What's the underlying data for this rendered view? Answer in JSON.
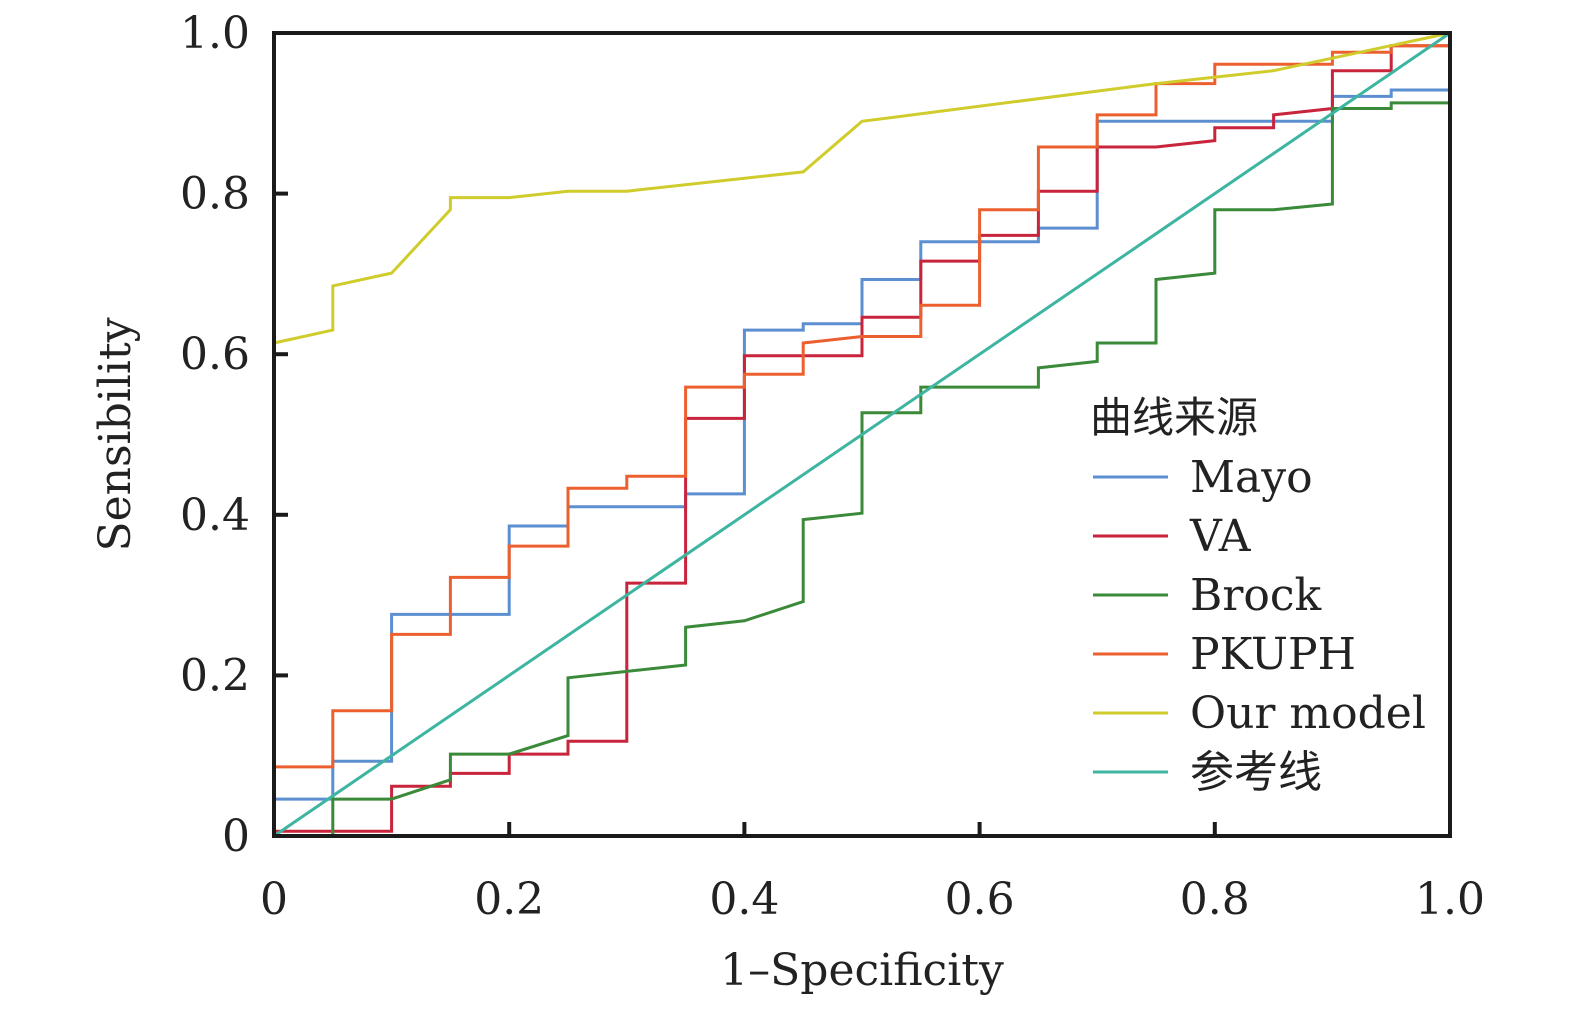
{
  "chart_data": {
    "type": "line",
    "xlabel": "1–Specificity",
    "ylabel": "Sensibility",
    "xlim": [
      0,
      1
    ],
    "ylim": [
      0,
      1
    ],
    "x_ticks": [
      0,
      0.2,
      0.4,
      0.6,
      0.8,
      1.0
    ],
    "x_tick_labels": [
      "0",
      "0.2",
      "0.4",
      "0.6",
      "0.8",
      "1.0"
    ],
    "y_ticks": [
      0,
      0.2,
      0.4,
      0.6,
      0.8,
      1.0
    ],
    "y_tick_labels": [
      "0",
      "0.2",
      "0.4",
      "0.6",
      "0.8",
      "1.0"
    ],
    "grid": false,
    "legend": {
      "title": "曲线来源",
      "position": "right"
    },
    "series": [
      {
        "name": "Mayo",
        "color": "#5b8fd0",
        "points": [
          [
            0,
            0
          ],
          [
            0,
            0.046
          ],
          [
            0.05,
            0.046
          ],
          [
            0.05,
            0.093
          ],
          [
            0.1,
            0.093
          ],
          [
            0.1,
            0.276
          ],
          [
            0.2,
            0.276
          ],
          [
            0.2,
            0.386
          ],
          [
            0.25,
            0.386
          ],
          [
            0.25,
            0.41
          ],
          [
            0.35,
            0.41
          ],
          [
            0.35,
            0.426
          ],
          [
            0.4,
            0.426
          ],
          [
            0.4,
            0.63
          ],
          [
            0.45,
            0.63
          ],
          [
            0.45,
            0.638
          ],
          [
            0.5,
            0.638
          ],
          [
            0.5,
            0.693
          ],
          [
            0.55,
            0.693
          ],
          [
            0.55,
            0.74
          ],
          [
            0.6,
            0.74
          ],
          [
            0.6,
            0.74
          ],
          [
            0.65,
            0.74
          ],
          [
            0.65,
            0.757
          ],
          [
            0.7,
            0.757
          ],
          [
            0.7,
            0.89
          ],
          [
            0.8,
            0.89
          ],
          [
            0.8,
            0.89
          ],
          [
            0.9,
            0.89
          ],
          [
            0.9,
            0.921
          ],
          [
            0.95,
            0.921
          ],
          [
            0.95,
            0.929
          ],
          [
            1,
            0.929
          ],
          [
            1,
            1
          ]
        ]
      },
      {
        "name": "VA",
        "color": "#c8243c",
        "points": [
          [
            0,
            0
          ],
          [
            0,
            0.006
          ],
          [
            0.1,
            0.006
          ],
          [
            0.1,
            0.062
          ],
          [
            0.15,
            0.062
          ],
          [
            0.15,
            0.078
          ],
          [
            0.2,
            0.078
          ],
          [
            0.2,
            0.102
          ],
          [
            0.25,
            0.102
          ],
          [
            0.25,
            0.118
          ],
          [
            0.3,
            0.118
          ],
          [
            0.3,
            0.315
          ],
          [
            0.35,
            0.315
          ],
          [
            0.35,
            0.52
          ],
          [
            0.4,
            0.52
          ],
          [
            0.4,
            0.598
          ],
          [
            0.5,
            0.598
          ],
          [
            0.5,
            0.646
          ],
          [
            0.55,
            0.646
          ],
          [
            0.55,
            0.716
          ],
          [
            0.6,
            0.716
          ],
          [
            0.6,
            0.748
          ],
          [
            0.65,
            0.748
          ],
          [
            0.65,
            0.803
          ],
          [
            0.7,
            0.803
          ],
          [
            0.7,
            0.858
          ],
          [
            0.75,
            0.858
          ],
          [
            0.75,
            0.858
          ],
          [
            0.8,
            0.866
          ],
          [
            0.8,
            0.882
          ],
          [
            0.85,
            0.882
          ],
          [
            0.85,
            0.898
          ],
          [
            0.9,
            0.906
          ],
          [
            0.9,
            0.953
          ],
          [
            0.95,
            0.953
          ],
          [
            0.95,
            0.984
          ],
          [
            1,
            0.984
          ],
          [
            1,
            1
          ]
        ]
      },
      {
        "name": "Brock",
        "color": "#3a8a3a",
        "points": [
          [
            0,
            0
          ],
          [
            0.05,
            0
          ],
          [
            0.05,
            0.046
          ],
          [
            0.1,
            0.046
          ],
          [
            0.15,
            0.07
          ],
          [
            0.15,
            0.102
          ],
          [
            0.2,
            0.102
          ],
          [
            0.25,
            0.125
          ],
          [
            0.25,
            0.197
          ],
          [
            0.35,
            0.213
          ],
          [
            0.35,
            0.26
          ],
          [
            0.4,
            0.268
          ],
          [
            0.45,
            0.292
          ],
          [
            0.45,
            0.394
          ],
          [
            0.5,
            0.402
          ],
          [
            0.5,
            0.527
          ],
          [
            0.55,
            0.527
          ],
          [
            0.55,
            0.559
          ],
          [
            0.65,
            0.559
          ],
          [
            0.65,
            0.583
          ],
          [
            0.7,
            0.591
          ],
          [
            0.7,
            0.614
          ],
          [
            0.75,
            0.614
          ],
          [
            0.75,
            0.693
          ],
          [
            0.8,
            0.701
          ],
          [
            0.8,
            0.78
          ],
          [
            0.85,
            0.78
          ],
          [
            0.9,
            0.787
          ],
          [
            0.9,
            0.906
          ],
          [
            0.95,
            0.906
          ],
          [
            0.95,
            0.913
          ],
          [
            1,
            0.913
          ],
          [
            1,
            1
          ]
        ]
      },
      {
        "name": "PKUPH",
        "color": "#ec6030",
        "points": [
          [
            0,
            0
          ],
          [
            0,
            0.086
          ],
          [
            0.05,
            0.086
          ],
          [
            0.05,
            0.156
          ],
          [
            0.1,
            0.156
          ],
          [
            0.1,
            0.251
          ],
          [
            0.15,
            0.251
          ],
          [
            0.15,
            0.322
          ],
          [
            0.2,
            0.322
          ],
          [
            0.2,
            0.361
          ],
          [
            0.25,
            0.361
          ],
          [
            0.25,
            0.433
          ],
          [
            0.3,
            0.433
          ],
          [
            0.3,
            0.448
          ],
          [
            0.35,
            0.448
          ],
          [
            0.35,
            0.559
          ],
          [
            0.4,
            0.559
          ],
          [
            0.4,
            0.575
          ],
          [
            0.45,
            0.575
          ],
          [
            0.45,
            0.614
          ],
          [
            0.5,
            0.622
          ],
          [
            0.5,
            0.622
          ],
          [
            0.55,
            0.622
          ],
          [
            0.55,
            0.661
          ],
          [
            0.6,
            0.661
          ],
          [
            0.6,
            0.78
          ],
          [
            0.65,
            0.78
          ],
          [
            0.65,
            0.858
          ],
          [
            0.7,
            0.858
          ],
          [
            0.7,
            0.898
          ],
          [
            0.75,
            0.898
          ],
          [
            0.75,
            0.937
          ],
          [
            0.8,
            0.937
          ],
          [
            0.8,
            0.961
          ],
          [
            0.9,
            0.961
          ],
          [
            0.9,
            0.976
          ],
          [
            0.95,
            0.976
          ],
          [
            0.95,
            0.984
          ],
          [
            1,
            0.984
          ],
          [
            1,
            1
          ]
        ]
      },
      {
        "name": "Our model",
        "color": "#cfcc2c",
        "points": [
          [
            0,
            0
          ],
          [
            0,
            0.614
          ],
          [
            0.05,
            0.63
          ],
          [
            0.05,
            0.685
          ],
          [
            0.1,
            0.701
          ],
          [
            0.15,
            0.78
          ],
          [
            0.15,
            0.795
          ],
          [
            0.2,
            0.795
          ],
          [
            0.25,
            0.803
          ],
          [
            0.3,
            0.803
          ],
          [
            0.45,
            0.827
          ],
          [
            0.5,
            0.89
          ],
          [
            0.75,
            0.937
          ],
          [
            0.85,
            0.953
          ],
          [
            1,
            1
          ]
        ]
      },
      {
        "name": "参考线",
        "color": "#3db5a0",
        "points": [
          [
            0,
            0
          ],
          [
            1,
            1
          ]
        ]
      }
    ]
  }
}
